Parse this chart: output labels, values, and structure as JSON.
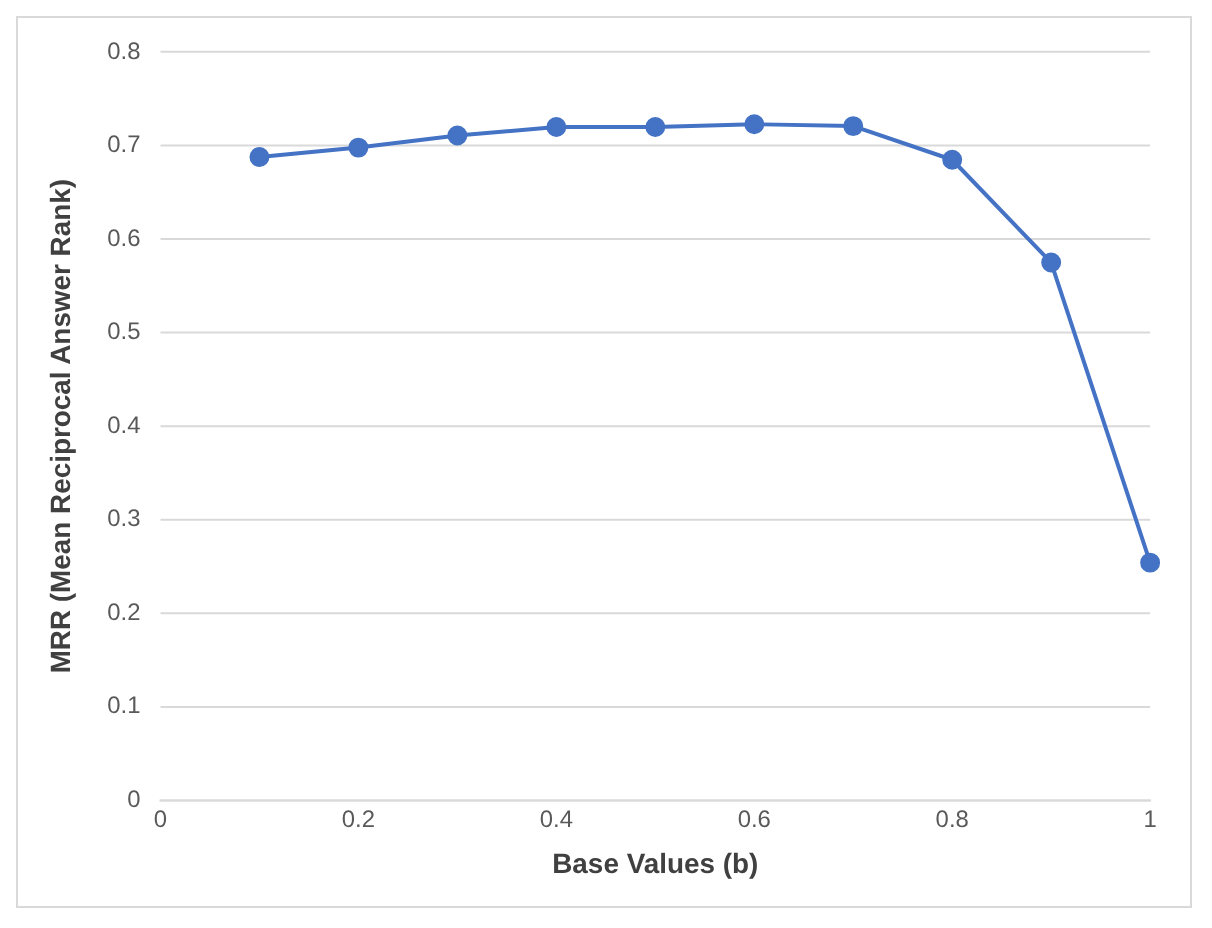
{
  "chart_data": {
    "type": "line",
    "xlabel": "Base Values (b)",
    "ylabel": "MRR (Mean Reciprocal Answer Rank)",
    "x": [
      0.1,
      0.2,
      0.3,
      0.4,
      0.5,
      0.6,
      0.7,
      0.8,
      0.9,
      1.0
    ],
    "series": [
      {
        "color": "#4472c4",
        "values": [
          0.688,
          0.698,
          0.711,
          0.72,
          0.72,
          0.723,
          0.721,
          0.685,
          0.575,
          0.254
        ]
      }
    ],
    "xlim": [
      0,
      1
    ],
    "xticks": [
      0,
      0.2,
      0.4,
      0.6,
      0.8,
      1
    ],
    "ylim": [
      0,
      0.8
    ],
    "yticks": [
      0,
      0.1,
      0.2,
      0.3,
      0.4,
      0.5,
      0.6,
      0.7,
      0.8
    ],
    "grid": "y",
    "legend": false,
    "marker": "circle",
    "line_style": "solid"
  }
}
